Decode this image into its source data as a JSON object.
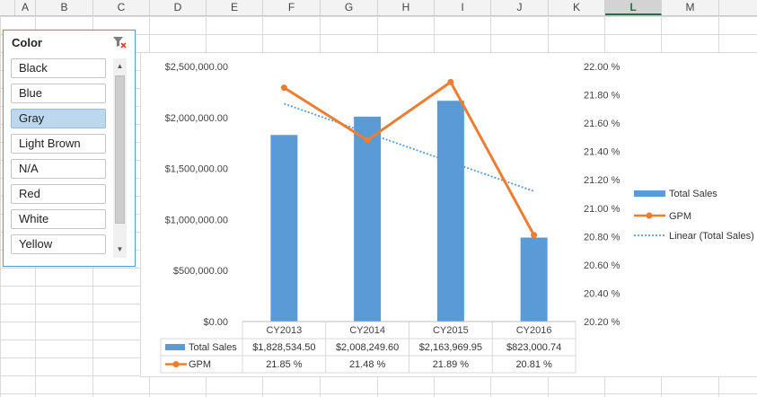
{
  "columns": [
    "A",
    "B",
    "C",
    "D",
    "E",
    "F",
    "G",
    "H",
    "I",
    "J",
    "K",
    "L",
    "M"
  ],
  "selected_column": "L",
  "slicer": {
    "title": "Color",
    "items": [
      {
        "label": "Black",
        "selected": false
      },
      {
        "label": "Blue",
        "selected": false
      },
      {
        "label": "Gray",
        "selected": true
      },
      {
        "label": "Light Brown",
        "selected": false
      },
      {
        "label": "N/A",
        "selected": false
      },
      {
        "label": "Red",
        "selected": false
      },
      {
        "label": "White",
        "selected": false
      },
      {
        "label": "Yellow",
        "selected": false
      }
    ],
    "clear_icon": "clear-filter-icon"
  },
  "chart_data": {
    "type": "bar",
    "categories": [
      "CY2013",
      "CY2014",
      "CY2015",
      "CY2016"
    ],
    "series": [
      {
        "name": "Total Sales",
        "type": "bar",
        "axis": "left",
        "values": [
          1828534.5,
          2008249.6,
          2163969.95,
          823000.74
        ],
        "labels": [
          "$1,828,534.50",
          "$2,008,249.60",
          "$2,163,969.95",
          "$823,000.74"
        ],
        "color": "#5b9bd5"
      },
      {
        "name": "GPM",
        "type": "line",
        "axis": "right",
        "values": [
          21.85,
          21.48,
          21.89,
          20.81
        ],
        "labels": [
          "21.85 %",
          "21.48 %",
          "21.89 %",
          "20.81 %"
        ],
        "color": "#ed7d31"
      },
      {
        "name": "Linear (Total Sales)",
        "type": "trendline",
        "axis": "left",
        "color": "#5b9bd5"
      }
    ],
    "left_axis": {
      "ticks": [
        "$2,500,000.00",
        "$2,000,000.00",
        "$1,500,000.00",
        "$1,000,000.00",
        "$500,000.00",
        "$0.00"
      ],
      "ylim": [
        0,
        2500000
      ]
    },
    "right_axis": {
      "ticks": [
        "22.00 %",
        "21.80 %",
        "21.60 %",
        "21.40 %",
        "21.20 %",
        "21.00 %",
        "20.80 %",
        "20.60 %",
        "20.40 %",
        "20.20 %"
      ],
      "ylim": [
        20.2,
        22.0
      ]
    },
    "legend": "right",
    "data_table": true
  }
}
